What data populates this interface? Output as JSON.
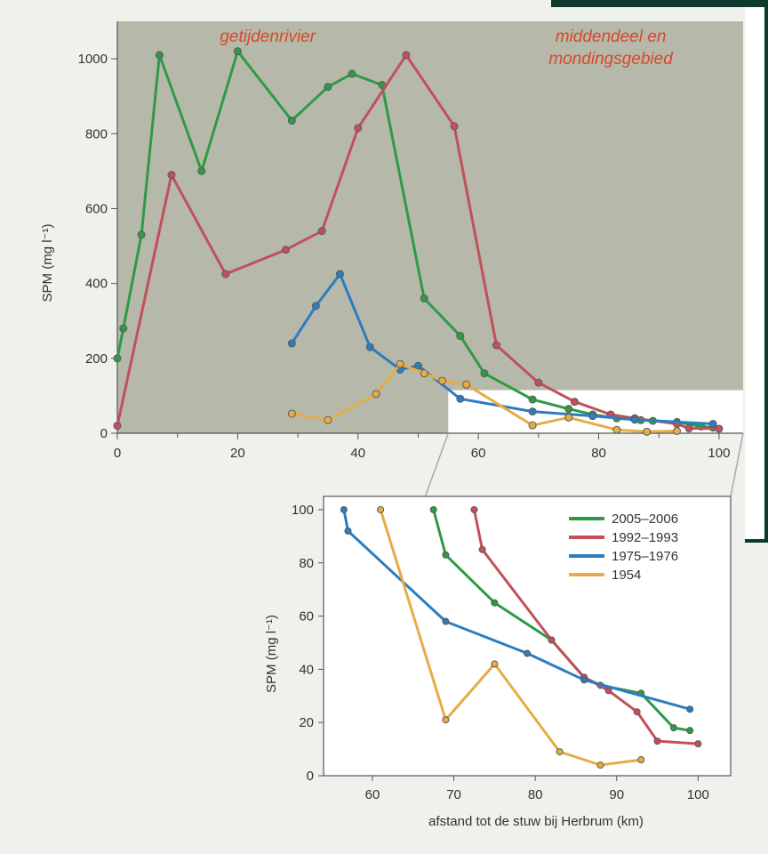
{
  "chart_data": [
    {
      "type": "line",
      "title": "",
      "xlabel": "",
      "ylabel": "SPM (mg l⁻¹)",
      "xlim": [
        0,
        104
      ],
      "ylim": [
        0,
        1100
      ],
      "xticks": [
        0,
        20,
        40,
        60,
        80,
        100
      ],
      "yticks": [
        0,
        200,
        400,
        600,
        800,
        1000
      ],
      "grid": false,
      "region_labels": [
        {
          "text": "getijdenrivier",
          "x": 25,
          "y": 1060
        },
        {
          "text": "middendeel en",
          "x": 82,
          "y": 1060
        },
        {
          "text": "mondingsgebied",
          "x": 82,
          "y": 1000
        }
      ],
      "series": [
        {
          "name": "2005–2006",
          "color": "#2e9a46",
          "x": [
            0,
            1,
            4,
            7,
            14,
            20,
            29,
            35,
            39,
            44,
            51,
            57,
            61,
            69,
            75,
            79,
            83,
            87,
            89,
            93,
            97,
            99
          ],
          "y": [
            200,
            280,
            530,
            1010,
            700,
            1020,
            835,
            925,
            960,
            930,
            360,
            260,
            160,
            90,
            65,
            50,
            40,
            35,
            33,
            30,
            18,
            15
          ]
        },
        {
          "name": "1992–1993",
          "color": "#c2505b",
          "x": [
            0,
            9,
            18,
            28,
            34,
            40,
            48,
            56,
            63,
            70,
            76,
            82,
            86,
            93,
            95,
            100
          ],
          "y": [
            20,
            690,
            425,
            490,
            540,
            815,
            1010,
            820,
            235,
            135,
            84,
            50,
            40,
            25,
            13,
            12
          ]
        },
        {
          "name": "1975–1976",
          "color": "#2c7dc0",
          "x": [
            29,
            33,
            37,
            42,
            47,
            50,
            57,
            69,
            79,
            86,
            99
          ],
          "y": [
            240,
            340,
            425,
            230,
            170,
            180,
            92,
            58,
            46,
            36,
            25
          ]
        },
        {
          "name": "1954",
          "color": "#e6ad45",
          "x": [
            29,
            35,
            43,
            47,
            51,
            54,
            58,
            69,
            75,
            83,
            88,
            93
          ],
          "y": [
            52,
            35,
            105,
            185,
            160,
            140,
            130,
            21,
            42,
            9,
            4,
            6
          ]
        }
      ],
      "inset_region": {
        "x": [
          55,
          104
        ],
        "y": [
          0,
          115
        ]
      }
    },
    {
      "type": "line",
      "title": "",
      "xlabel": "afstand tot de stuw bij Herbrum (km)",
      "ylabel": "SPM (mg l⁻¹)",
      "xlim": [
        54,
        104
      ],
      "ylim": [
        0,
        105
      ],
      "xticks": [
        60,
        70,
        80,
        90,
        100
      ],
      "yticks": [
        0,
        20,
        40,
        60,
        80,
        100
      ],
      "grid": false,
      "legend": "top-right",
      "series": [
        {
          "name": "2005–2006",
          "color": "#2e9a46",
          "x": [
            67.5,
            69,
            75,
            82,
            86,
            88,
            93,
            97,
            99
          ],
          "y": [
            100,
            83,
            65,
            51,
            37,
            34,
            31,
            18,
            17
          ]
        },
        {
          "name": "1992–1993",
          "color": "#c2505b",
          "x": [
            72.5,
            73.5,
            82,
            86,
            89,
            92.5,
            95,
            100
          ],
          "y": [
            100,
            85,
            51,
            37,
            32,
            24,
            13,
            12
          ]
        },
        {
          "name": "1975–1976",
          "color": "#2c7dc0",
          "x": [
            56.5,
            57,
            69,
            79,
            86,
            99
          ],
          "y": [
            100,
            92,
            58,
            46,
            36,
            25
          ]
        },
        {
          "name": "1954",
          "color": "#e6ad45",
          "x": [
            61,
            69,
            75,
            83,
            88,
            93
          ],
          "y": [
            100,
            21,
            42,
            9,
            4,
            6
          ]
        }
      ]
    }
  ]
}
